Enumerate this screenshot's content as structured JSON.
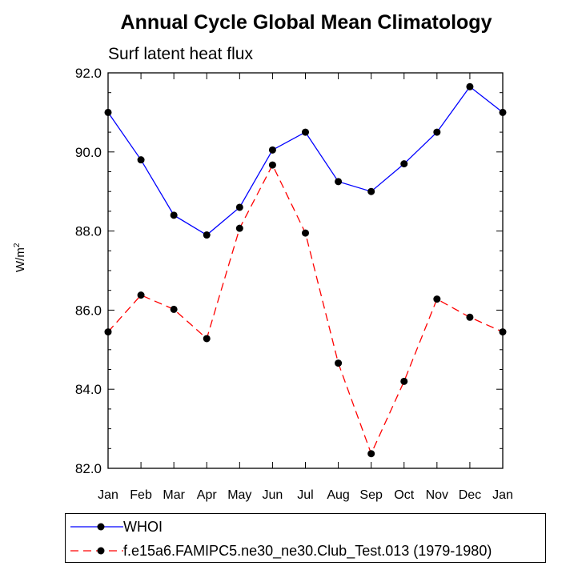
{
  "chart_data": {
    "type": "line",
    "title": "Annual Cycle Global Mean Climatology",
    "subtitle": "Surf latent heat flux",
    "ylabel": "W/m",
    "ylabel_superscript": "2",
    "ylim": [
      82.0,
      92.0
    ],
    "yticks": [
      "82.0",
      "84.0",
      "86.0",
      "88.0",
      "90.0",
      "92.0"
    ],
    "categories": [
      "Jan",
      "Feb",
      "Mar",
      "Apr",
      "May",
      "Jun",
      "Jul",
      "Aug",
      "Sep",
      "Oct",
      "Nov",
      "Dec",
      "Jan"
    ],
    "series": [
      {
        "name": "WHOI",
        "color": "#0000ff",
        "line_style": "solid",
        "values": [
          91.0,
          89.8,
          88.4,
          87.9,
          88.6,
          90.05,
          90.5,
          89.25,
          89.0,
          89.7,
          90.5,
          91.65,
          91.0
        ]
      },
      {
        "name": "f.e15a6.FAMIPC5.ne30_ne30.Club_Test.013 (1979-1980)",
        "color": "#ff0000",
        "line_style": "dashed",
        "values": [
          85.45,
          86.38,
          86.02,
          85.28,
          88.07,
          89.67,
          87.95,
          84.66,
          82.37,
          84.2,
          86.28,
          85.82,
          85.45
        ]
      }
    ],
    "grid": false,
    "legend_position": "bottom"
  }
}
